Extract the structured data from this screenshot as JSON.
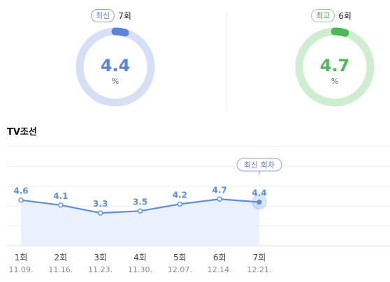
{
  "summary": {
    "latest": {
      "badge": "최신",
      "round": "7회",
      "value": "4.4",
      "unit": "%",
      "fraction": 0.044,
      "color": "#5b84d8",
      "track": "#d5e0f6"
    },
    "best": {
      "badge": "최고",
      "round": "6회",
      "value": "4.7",
      "unit": "%",
      "fraction": 0.047,
      "color": "#4cb85c",
      "track": "#cfeecf"
    }
  },
  "section": {
    "title": "TV조선"
  },
  "chart_data": {
    "type": "line",
    "categories": [
      "1회",
      "2회",
      "3회",
      "4회",
      "5회",
      "6회",
      "7회"
    ],
    "dates": [
      "11.09.",
      "11.16.",
      "11.23.",
      "11.30.",
      "12.07.",
      "12.14.",
      "12.21."
    ],
    "series": [
      {
        "values": [
          4.6,
          4.1,
          3.3,
          3.5,
          4.2,
          4.7,
          4.4
        ],
        "color": "#5b8fde"
      }
    ],
    "ylim": [
      0,
      10
    ],
    "grid": true,
    "highlight": {
      "index": 6,
      "label": "최신 회차"
    }
  }
}
